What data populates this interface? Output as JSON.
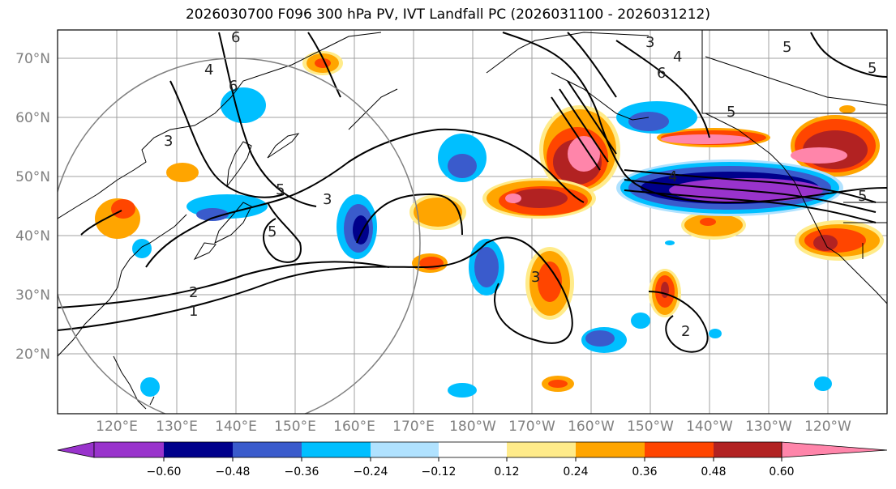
{
  "title": "2026030700 F096 300 hPa PV, IVT Landfall PC (2026031100 - 2026031212)",
  "map": {
    "lat_labels": [
      "70°N",
      "60°N",
      "50°N",
      "40°N",
      "30°N",
      "20°N"
    ],
    "lon_labels": [
      "120°E",
      "130°E",
      "140°E",
      "150°E",
      "160°E",
      "170°E",
      "180°W",
      "170°W",
      "160°W",
      "150°W",
      "140°W",
      "130°W",
      "120°W"
    ],
    "contour_labels": [
      "1",
      "2",
      "3",
      "3",
      "4",
      "5",
      "5",
      "6",
      "6",
      "3",
      "4",
      "6",
      "5",
      "4",
      "5",
      "5",
      "5",
      "3",
      "2"
    ],
    "colors": {
      "land_line": "#000000",
      "grid": "#a0a0a0",
      "contour": "#000000",
      "circle": "#808080"
    }
  },
  "colorbar": {
    "labels": [
      "−0.60",
      "−0.48",
      "−0.36",
      "−0.24",
      "−0.12",
      "0.12",
      "0.24",
      "0.36",
      "0.48",
      "0.60"
    ],
    "colors": [
      "#9933cc",
      "#00008b",
      "#3a5bcc",
      "#00bfff",
      "#b0e2ff",
      "#ffffff",
      "#ffeb8a",
      "#ffa500",
      "#ff4500",
      "#b22222",
      "#ff85aa"
    ]
  }
}
